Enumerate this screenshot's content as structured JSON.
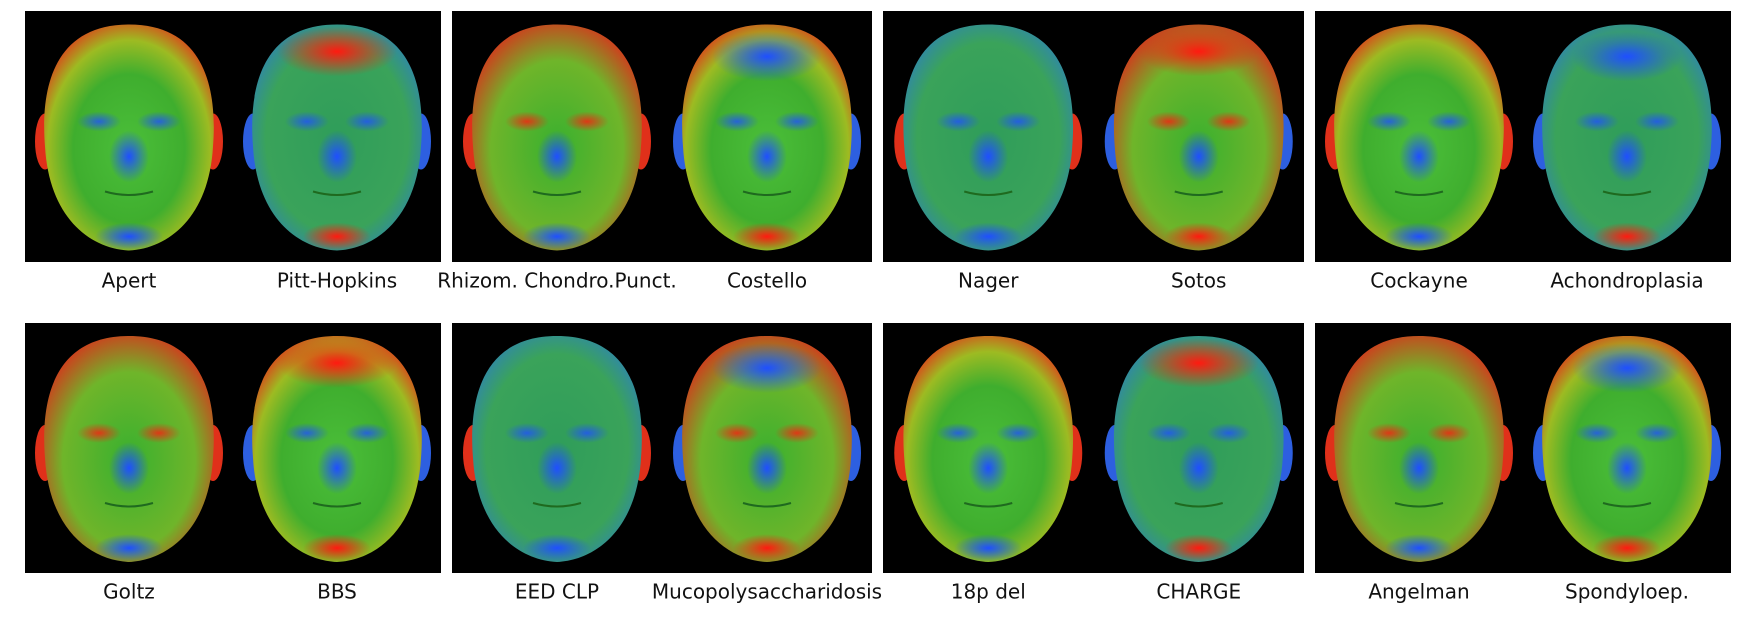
{
  "figure": {
    "rows": [
      [
        [
          "Apert",
          "Pitt-Hopkins"
        ],
        [
          "Rhizom. Chondro.Punct.",
          "Costello"
        ],
        [
          "Nager",
          "Sotos"
        ],
        [
          "Cockayne",
          "Achondroplasia"
        ]
      ],
      [
        [
          "Goltz",
          "BBS"
        ],
        [
          "EED CLP",
          "Mucopolysaccharidosis"
        ],
        [
          "18p del",
          "CHARGE"
        ],
        [
          "Angelman",
          "Spondyloep."
        ]
      ]
    ]
  }
}
